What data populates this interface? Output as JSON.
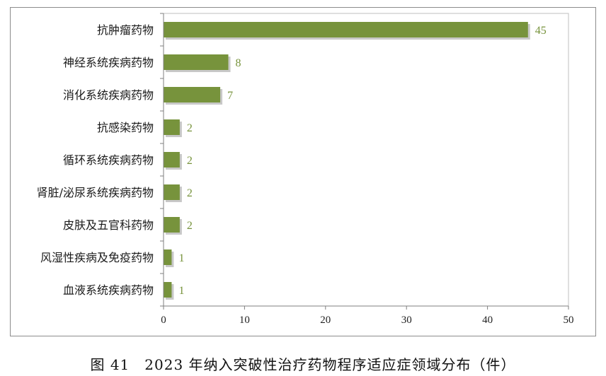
{
  "chart_data": {
    "type": "bar",
    "orientation": "horizontal",
    "categories": [
      "抗肿瘤药物",
      "神经系统疾病药物",
      "消化系统疾病药物",
      "抗感染药物",
      "循环系统疾病药物",
      "肾脏/泌尿系统疾病药物",
      "皮肤及五官科药物",
      "风湿性疾病及免疫药物",
      "血液系统疾病药物"
    ],
    "values": [
      45,
      8,
      7,
      2,
      2,
      2,
      2,
      1,
      1
    ],
    "data_labels": [
      "45",
      "8",
      "7",
      "2",
      "2",
      "2",
      "2",
      "1",
      "1"
    ],
    "xlim": [
      0,
      50
    ],
    "xticks": [
      0,
      10,
      20,
      30,
      40,
      50
    ],
    "xtick_labels": [
      "0",
      "10",
      "20",
      "30",
      "40",
      "50"
    ],
    "grid": false,
    "legend": "none",
    "bar_color": "#77933c",
    "label_color": "#77933c"
  },
  "caption": "图 41　2023 年纳入突破性治疗药物程序适应症领域分布（件）"
}
